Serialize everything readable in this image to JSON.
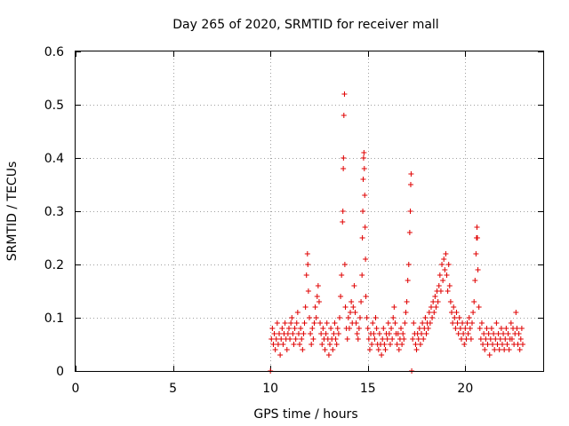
{
  "chart_data": {
    "type": "scatter",
    "title": "Day 265 of 2020, SRMTID for receiver mall",
    "xlabel": "GPS time / hours",
    "ylabel": "SRMTID / TECUs",
    "xlim": [
      0,
      24
    ],
    "ylim": [
      0,
      0.6
    ],
    "xticks": [
      0,
      5,
      10,
      15,
      20
    ],
    "xtick_labels": [
      "0",
      "5",
      "10",
      "15",
      "20"
    ],
    "yticks": [
      0,
      0.1,
      0.2,
      0.3,
      0.4,
      0.5,
      0.6
    ],
    "ytick_labels": [
      "0",
      "0.1",
      "0.2",
      "0.3",
      "0.4",
      "0.5",
      "0.6"
    ],
    "grid": true,
    "marker": "plus",
    "color": "#e00000",
    "series": [
      {
        "name": "SRMTID",
        "points": [
          [
            10.0,
            0.0
          ],
          [
            10.05,
            0.06
          ],
          [
            10.1,
            0.08
          ],
          [
            10.15,
            0.05
          ],
          [
            10.2,
            0.07
          ],
          [
            10.25,
            0.04
          ],
          [
            10.3,
            0.06
          ],
          [
            10.35,
            0.09
          ],
          [
            10.4,
            0.05
          ],
          [
            10.45,
            0.07
          ],
          [
            10.5,
            0.03
          ],
          [
            10.55,
            0.06
          ],
          [
            10.6,
            0.08
          ],
          [
            10.65,
            0.05
          ],
          [
            10.7,
            0.07
          ],
          [
            10.75,
            0.09
          ],
          [
            10.8,
            0.06
          ],
          [
            10.85,
            0.04
          ],
          [
            10.9,
            0.07
          ],
          [
            10.95,
            0.08
          ],
          [
            11.0,
            0.06
          ],
          [
            11.05,
            0.09
          ],
          [
            11.1,
            0.1
          ],
          [
            11.15,
            0.07
          ],
          [
            11.2,
            0.05
          ],
          [
            11.25,
            0.08
          ],
          [
            11.3,
            0.06
          ],
          [
            11.35,
            0.09
          ],
          [
            11.4,
            0.11
          ],
          [
            11.45,
            0.07
          ],
          [
            11.5,
            0.05
          ],
          [
            11.55,
            0.08
          ],
          [
            11.6,
            0.06
          ],
          [
            11.65,
            0.04
          ],
          [
            11.7,
            0.07
          ],
          [
            11.75,
            0.09
          ],
          [
            11.8,
            0.12
          ],
          [
            11.85,
            0.18
          ],
          [
            11.9,
            0.22
          ],
          [
            11.92,
            0.2
          ],
          [
            11.95,
            0.15
          ],
          [
            12.0,
            0.1
          ],
          [
            12.05,
            0.07
          ],
          [
            12.1,
            0.05
          ],
          [
            12.15,
            0.08
          ],
          [
            12.2,
            0.06
          ],
          [
            12.25,
            0.09
          ],
          [
            12.3,
            0.12
          ],
          [
            12.35,
            0.1
          ],
          [
            12.4,
            0.14
          ],
          [
            12.45,
            0.16
          ],
          [
            12.5,
            0.13
          ],
          [
            12.55,
            0.09
          ],
          [
            12.6,
            0.07
          ],
          [
            12.65,
            0.05
          ],
          [
            12.7,
            0.08
          ],
          [
            12.75,
            0.06
          ],
          [
            12.8,
            0.04
          ],
          [
            12.85,
            0.07
          ],
          [
            12.9,
            0.09
          ],
          [
            12.95,
            0.06
          ],
          [
            13.0,
            0.03
          ],
          [
            13.05,
            0.05
          ],
          [
            13.1,
            0.08
          ],
          [
            13.15,
            0.06
          ],
          [
            13.2,
            0.04
          ],
          [
            13.25,
            0.07
          ],
          [
            13.3,
            0.09
          ],
          [
            13.35,
            0.06
          ],
          [
            13.4,
            0.05
          ],
          [
            13.45,
            0.08
          ],
          [
            13.5,
            0.07
          ],
          [
            13.55,
            0.1
          ],
          [
            13.6,
            0.14
          ],
          [
            13.65,
            0.18
          ],
          [
            13.7,
            0.28
          ],
          [
            13.72,
            0.3
          ],
          [
            13.74,
            0.38
          ],
          [
            13.75,
            0.4
          ],
          [
            13.77,
            0.48
          ],
          [
            13.8,
            0.52
          ],
          [
            13.82,
            0.2
          ],
          [
            13.85,
            0.12
          ],
          [
            13.9,
            0.08
          ],
          [
            13.95,
            0.06
          ],
          [
            14.0,
            0.1
          ],
          [
            14.05,
            0.08
          ],
          [
            14.1,
            0.11
          ],
          [
            14.15,
            0.13
          ],
          [
            14.2,
            0.09
          ],
          [
            14.25,
            0.12
          ],
          [
            14.3,
            0.16
          ],
          [
            14.35,
            0.11
          ],
          [
            14.4,
            0.09
          ],
          [
            14.45,
            0.07
          ],
          [
            14.5,
            0.06
          ],
          [
            14.55,
            0.08
          ],
          [
            14.6,
            0.1
          ],
          [
            14.65,
            0.13
          ],
          [
            14.7,
            0.18
          ],
          [
            14.72,
            0.25
          ],
          [
            14.74,
            0.3
          ],
          [
            14.76,
            0.36
          ],
          [
            14.78,
            0.4
          ],
          [
            14.8,
            0.41
          ],
          [
            14.82,
            0.38
          ],
          [
            14.84,
            0.33
          ],
          [
            14.86,
            0.27
          ],
          [
            14.88,
            0.21
          ],
          [
            14.9,
            0.14
          ],
          [
            14.95,
            0.1
          ],
          [
            15.0,
            0.08
          ],
          [
            15.05,
            0.06
          ],
          [
            15.1,
            0.04
          ],
          [
            15.15,
            0.07
          ],
          [
            15.2,
            0.05
          ],
          [
            15.25,
            0.09
          ],
          [
            15.3,
            0.07
          ],
          [
            15.35,
            0.06
          ],
          [
            15.4,
            0.1
          ],
          [
            15.45,
            0.08
          ],
          [
            15.5,
            0.05
          ],
          [
            15.55,
            0.04
          ],
          [
            15.6,
            0.07
          ],
          [
            15.65,
            0.05
          ],
          [
            15.7,
            0.03
          ],
          [
            15.75,
            0.06
          ],
          [
            15.8,
            0.08
          ],
          [
            15.85,
            0.05
          ],
          [
            15.9,
            0.04
          ],
          [
            15.95,
            0.07
          ],
          [
            16.0,
            0.06
          ],
          [
            16.05,
            0.09
          ],
          [
            16.1,
            0.07
          ],
          [
            16.15,
            0.05
          ],
          [
            16.2,
            0.08
          ],
          [
            16.25,
            0.06
          ],
          [
            16.3,
            0.1
          ],
          [
            16.35,
            0.12
          ],
          [
            16.4,
            0.09
          ],
          [
            16.45,
            0.07
          ],
          [
            16.5,
            0.05
          ],
          [
            16.55,
            0.07
          ],
          [
            16.6,
            0.04
          ],
          [
            16.65,
            0.06
          ],
          [
            16.7,
            0.08
          ],
          [
            16.75,
            0.05
          ],
          [
            16.8,
            0.07
          ],
          [
            16.85,
            0.06
          ],
          [
            16.9,
            0.09
          ],
          [
            16.95,
            0.11
          ],
          [
            17.0,
            0.13
          ],
          [
            17.05,
            0.17
          ],
          [
            17.1,
            0.2
          ],
          [
            17.15,
            0.26
          ],
          [
            17.18,
            0.3
          ],
          [
            17.2,
            0.35
          ],
          [
            17.22,
            0.37
          ],
          [
            17.25,
            0.0
          ],
          [
            17.3,
            0.06
          ],
          [
            17.35,
            0.09
          ],
          [
            17.4,
            0.07
          ],
          [
            17.45,
            0.05
          ],
          [
            17.5,
            0.04
          ],
          [
            17.55,
            0.07
          ],
          [
            17.6,
            0.06
          ],
          [
            17.65,
            0.08
          ],
          [
            17.7,
            0.05
          ],
          [
            17.75,
            0.07
          ],
          [
            17.8,
            0.09
          ],
          [
            17.85,
            0.06
          ],
          [
            17.9,
            0.08
          ],
          [
            17.95,
            0.1
          ],
          [
            18.0,
            0.07
          ],
          [
            18.05,
            0.09
          ],
          [
            18.1,
            0.08
          ],
          [
            18.15,
            0.11
          ],
          [
            18.2,
            0.09
          ],
          [
            18.25,
            0.12
          ],
          [
            18.3,
            0.1
          ],
          [
            18.35,
            0.13
          ],
          [
            18.4,
            0.11
          ],
          [
            18.45,
            0.14
          ],
          [
            18.5,
            0.12
          ],
          [
            18.55,
            0.15
          ],
          [
            18.6,
            0.13
          ],
          [
            18.65,
            0.16
          ],
          [
            18.7,
            0.18
          ],
          [
            18.75,
            0.15
          ],
          [
            18.8,
            0.2
          ],
          [
            18.85,
            0.17
          ],
          [
            18.9,
            0.21
          ],
          [
            18.95,
            0.19
          ],
          [
            19.0,
            0.22
          ],
          [
            19.05,
            0.18
          ],
          [
            19.1,
            0.15
          ],
          [
            19.15,
            0.2
          ],
          [
            19.2,
            0.16
          ],
          [
            19.25,
            0.13
          ],
          [
            19.3,
            0.11
          ],
          [
            19.35,
            0.09
          ],
          [
            19.4,
            0.12
          ],
          [
            19.45,
            0.1
          ],
          [
            19.5,
            0.08
          ],
          [
            19.55,
            0.11
          ],
          [
            19.6,
            0.09
          ],
          [
            19.65,
            0.07
          ],
          [
            19.7,
            0.1
          ],
          [
            19.75,
            0.08
          ],
          [
            19.8,
            0.06
          ],
          [
            19.85,
            0.09
          ],
          [
            19.9,
            0.07
          ],
          [
            19.95,
            0.05
          ],
          [
            20.0,
            0.08
          ],
          [
            20.05,
            0.06
          ],
          [
            20.1,
            0.09
          ],
          [
            20.15,
            0.07
          ],
          [
            20.2,
            0.1
          ],
          [
            20.25,
            0.08
          ],
          [
            20.3,
            0.06
          ],
          [
            20.35,
            0.09
          ],
          [
            20.4,
            0.11
          ],
          [
            20.45,
            0.13
          ],
          [
            20.5,
            0.17
          ],
          [
            20.55,
            0.22
          ],
          [
            20.58,
            0.25
          ],
          [
            20.6,
            0.27
          ],
          [
            20.62,
            0.25
          ],
          [
            20.65,
            0.19
          ],
          [
            20.7,
            0.12
          ],
          [
            20.75,
            0.08
          ],
          [
            20.8,
            0.06
          ],
          [
            20.85,
            0.09
          ],
          [
            20.9,
            0.05
          ],
          [
            20.95,
            0.07
          ],
          [
            21.0,
            0.04
          ],
          [
            21.05,
            0.06
          ],
          [
            21.1,
            0.08
          ],
          [
            21.15,
            0.05
          ],
          [
            21.2,
            0.07
          ],
          [
            21.25,
            0.03
          ],
          [
            21.3,
            0.06
          ],
          [
            21.35,
            0.08
          ],
          [
            21.4,
            0.05
          ],
          [
            21.45,
            0.07
          ],
          [
            21.5,
            0.04
          ],
          [
            21.55,
            0.06
          ],
          [
            21.6,
            0.09
          ],
          [
            21.65,
            0.05
          ],
          [
            21.7,
            0.07
          ],
          [
            21.75,
            0.04
          ],
          [
            21.8,
            0.06
          ],
          [
            21.85,
            0.08
          ],
          [
            21.9,
            0.05
          ],
          [
            21.95,
            0.07
          ],
          [
            22.0,
            0.04
          ],
          [
            22.05,
            0.06
          ],
          [
            22.1,
            0.08
          ],
          [
            22.15,
            0.05
          ],
          [
            22.2,
            0.07
          ],
          [
            22.25,
            0.04
          ],
          [
            22.3,
            0.06
          ],
          [
            22.35,
            0.09
          ],
          [
            22.4,
            0.06
          ],
          [
            22.45,
            0.08
          ],
          [
            22.5,
            0.05
          ],
          [
            22.55,
            0.07
          ],
          [
            22.6,
            0.11
          ],
          [
            22.65,
            0.08
          ],
          [
            22.7,
            0.05
          ],
          [
            22.75,
            0.07
          ],
          [
            22.8,
            0.04
          ],
          [
            22.85,
            0.06
          ],
          [
            22.9,
            0.08
          ],
          [
            22.95,
            0.05
          ]
        ]
      }
    ]
  }
}
